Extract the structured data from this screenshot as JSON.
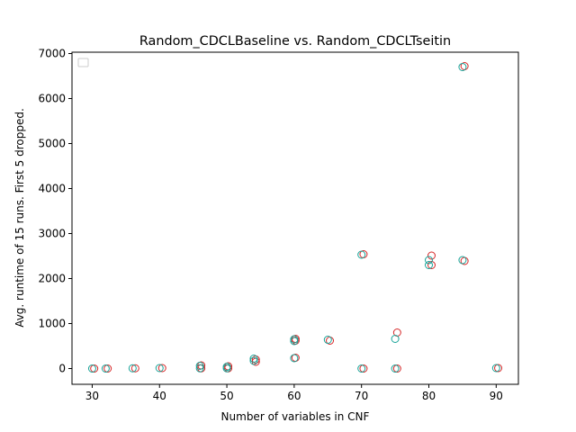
{
  "chart_data": {
    "type": "scatter",
    "title": "Random_CDCLBaseline vs. Random_CDCLTseitin",
    "xlabel": "Number of variables in CNF",
    "ylabel": "Avg. runtime of 15 runs. First 5 dropped.",
    "xlim": [
      27,
      93.3
    ],
    "ylim": [
      -350,
      7030
    ],
    "xticks": [
      30,
      40,
      50,
      60,
      70,
      80,
      90
    ],
    "yticks": [
      0,
      1000,
      2000,
      3000,
      4000,
      5000,
      6000,
      7000
    ],
    "grid": false,
    "legend": "top-left",
    "series": [
      {
        "color": "#d62728",
        "x": [
          30.3,
          32.3,
          36.4,
          40.4,
          46.2,
          46.2,
          50.2,
          50.2,
          54.3,
          54.3,
          60.2,
          60.2,
          60.2,
          65.3,
          70.3,
          70.3,
          75.3,
          75.3,
          80.4,
          80.4,
          85.3,
          85.3,
          90.3
        ],
        "y": [
          0,
          0,
          5,
          10,
          70,
          5,
          50,
          5,
          200,
          150,
          660,
          620,
          240,
          620,
          2540,
          0,
          800,
          0,
          2510,
          2300,
          6720,
          2390,
          10
        ]
      },
      {
        "color": "#17a398",
        "x": [
          30.0,
          32.0,
          36.0,
          40.0,
          46.0,
          46.0,
          50.0,
          50.0,
          54.0,
          54.0,
          60.0,
          60.0,
          60.0,
          65.0,
          70.0,
          70.0,
          75.0,
          75.0,
          80.0,
          80.0,
          85.0,
          85.0,
          90.0
        ],
        "y": [
          0,
          0,
          5,
          10,
          60,
          5,
          40,
          5,
          220,
          170,
          650,
          610,
          230,
          640,
          2530,
          0,
          660,
          0,
          2410,
          2300,
          6700,
          2410,
          10
        ]
      }
    ]
  }
}
